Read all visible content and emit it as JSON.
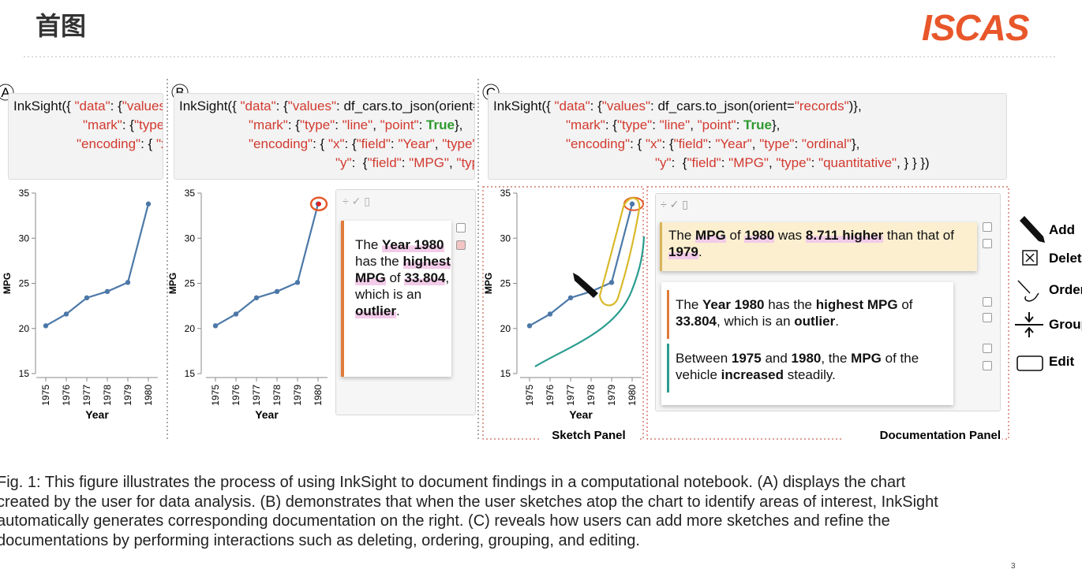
{
  "header": {
    "title": "首图",
    "logo": "ISCAS"
  },
  "panel_labels": [
    "A",
    "B",
    "C"
  ],
  "code": [
    "InkSight({ \"data\": {\"values\": df_cars.to_json(orient=\"records\")},",
    "\"mark\": {\"type\": \"line\", \"point\": True},",
    "\"encoding\": { \"x\": {\"field\": \"Year\", \"type\": \"ordinal\"},",
    "\"y\":  {\"field\": \"MPG\", \"type\": \"quantitative\", } } })"
  ],
  "chart_data": {
    "type": "line",
    "x_label": "Year",
    "y_label": "MPG",
    "categories": [
      "1975",
      "1976",
      "1977",
      "1978",
      "1979",
      "1980"
    ],
    "values": [
      20.3,
      21.6,
      23.4,
      24.1,
      25.1,
      33.8
    ],
    "ylim": [
      15,
      35
    ],
    "yticks": [
      15,
      20,
      25,
      30,
      35
    ],
    "color": "#4c78a8"
  },
  "cards": [
    {
      "segments": [
        "The ",
        "Year 1980",
        " has the ",
        "highest MPG",
        " of ",
        "33.804",
        ", which is an ",
        "outlier",
        "."
      ]
    },
    {
      "segments": [
        "The ",
        "MPG",
        " of ",
        "1980",
        " was ",
        "8.711 higher",
        " than that of ",
        "1979",
        "."
      ]
    },
    {
      "segments": [
        "The ",
        "Year 1980",
        " has the ",
        "highest MPG",
        " of ",
        "33.804",
        ", which is an ",
        "outlier",
        "."
      ]
    },
    {
      "segments": [
        "Between ",
        "1975",
        " and ",
        "1980",
        ", the ",
        "MPG",
        " of the vehicle ",
        "increased",
        " steadily."
      ]
    }
  ],
  "sketch_panel": "Sketch Panel",
  "documentation_panel": "Documentation Panel",
  "actions": [
    "Add",
    "Delete",
    "Order",
    "Group",
    "Edit"
  ],
  "caption": [
    "Fig. 1: This figure illustrates the process of using InkSight to document findings in a computational notebook. (A) displays the chart",
    "created by the user for data analysis. (B) demonstrates that when the user sketches atop the chart to identify areas of interest, InkSight",
    "automatically generates corresponding documentation on the right. (C) reveals how users can add more sketches and refine the",
    "documentations by performing interactions such as deleting, ordering, grouping, and editing."
  ],
  "page_number": "3"
}
